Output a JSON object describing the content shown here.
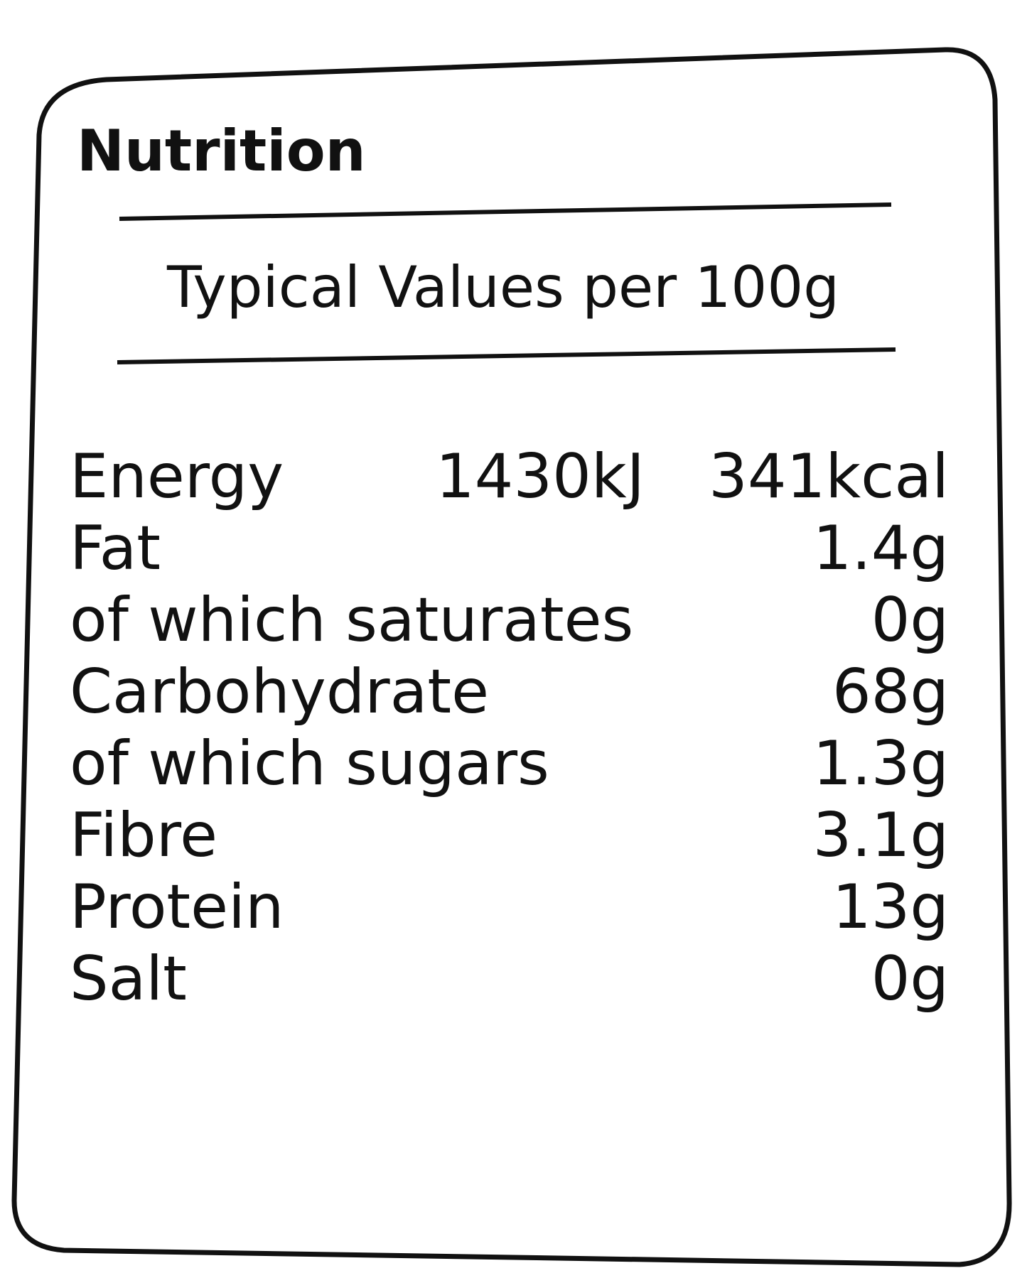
{
  "header": {
    "title": "Nutrition",
    "subtitle": "Typical Values per 100g"
  },
  "table": {
    "rows": [
      [
        "Energy",
        "1430kJ",
        "341kcal"
      ],
      [
        "Fat",
        "1.4g"
      ],
      [
        "of which saturates",
        "0g"
      ],
      [
        "Carbohydrate",
        "68g"
      ],
      [
        "of which sugars",
        "1.3g"
      ],
      [
        "Fibre",
        "3.1g"
      ],
      [
        "Protein",
        "13g"
      ],
      [
        "Salt",
        "0g"
      ]
    ]
  }
}
